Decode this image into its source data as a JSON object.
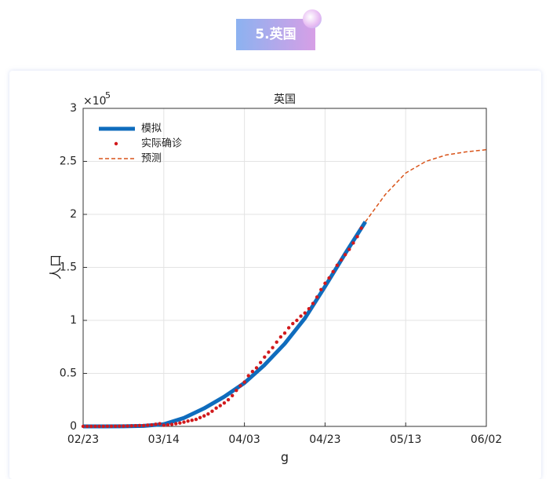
{
  "badge": "5.英国",
  "chart_data": {
    "type": "line",
    "title": "英国",
    "xlabel": "g",
    "ylabel": "人口",
    "y_scale_base": "×10",
    "y_scale_exponent": "5",
    "xlim": [
      0,
      100
    ],
    "xticks": [
      {
        "value": 0,
        "label": "02/23"
      },
      {
        "value": 20,
        "label": "03/14"
      },
      {
        "value": 40,
        "label": "04/03"
      },
      {
        "value": 60,
        "label": "04/23"
      },
      {
        "value": 80,
        "label": "05/13"
      },
      {
        "value": 100,
        "label": "06/02"
      }
    ],
    "ylim": [
      0,
      3
    ],
    "yticks": [
      0,
      0.5,
      1,
      1.5,
      2,
      2.5,
      3
    ],
    "grid": true,
    "legend": "upper-left",
    "series": [
      {
        "name": "模拟",
        "color": "#0f6cbd",
        "style": "solid",
        "x": [
          0,
          5,
          10,
          15,
          20,
          25,
          30,
          35,
          40,
          45,
          50,
          55,
          60,
          65,
          70
        ],
        "values": [
          0,
          0,
          0.001,
          0.005,
          0.02,
          0.08,
          0.17,
          0.28,
          0.41,
          0.58,
          0.78,
          1.02,
          1.32,
          1.63,
          1.93
        ]
      },
      {
        "name": "实际确诊",
        "color": "#d1191c",
        "style": "dotted",
        "x": [
          0,
          1,
          2,
          3,
          4,
          5,
          6,
          7,
          8,
          9,
          10,
          11,
          12,
          13,
          14,
          15,
          16,
          17,
          18,
          19,
          20,
          21,
          22,
          23,
          24,
          25,
          26,
          27,
          28,
          29,
          30,
          31,
          32,
          33,
          34,
          35,
          36,
          37,
          38,
          39,
          40,
          41,
          42,
          43,
          44,
          45,
          46,
          47,
          48,
          49,
          50,
          51,
          52,
          53,
          54,
          55,
          56,
          57,
          58,
          59,
          60,
          61,
          62,
          63,
          64,
          65,
          66,
          67,
          68,
          69
        ],
        "values": [
          0.0001,
          0.0001,
          0.0002,
          0.0002,
          0.0004,
          0.0005,
          0.0009,
          0.0012,
          0.0016,
          0.0021,
          0.0027,
          0.0032,
          0.0046,
          0.0059,
          0.008,
          0.008,
          0.0114,
          0.0139,
          0.0198,
          0.0258,
          0.011,
          0.014,
          0.019,
          0.025,
          0.032,
          0.04,
          0.05,
          0.058,
          0.066,
          0.083,
          0.099,
          0.117,
          0.143,
          0.173,
          0.196,
          0.221,
          0.251,
          0.29,
          0.339,
          0.383,
          0.418,
          0.478,
          0.518,
          0.552,
          0.602,
          0.654,
          0.7,
          0.743,
          0.795,
          0.844,
          0.88,
          0.93,
          0.97,
          1.0,
          1.04,
          1.07,
          1.11,
          1.16,
          1.22,
          1.29,
          1.35,
          1.4,
          1.46,
          1.52,
          1.57,
          1.62,
          1.67,
          1.73,
          1.79,
          1.87
        ]
      },
      {
        "name": "预测",
        "color": "#d9541a",
        "style": "dashed",
        "x": [
          70,
          75,
          80,
          85,
          90,
          95,
          100
        ],
        "values": [
          1.93,
          2.19,
          2.39,
          2.5,
          2.56,
          2.59,
          2.61
        ]
      }
    ]
  }
}
